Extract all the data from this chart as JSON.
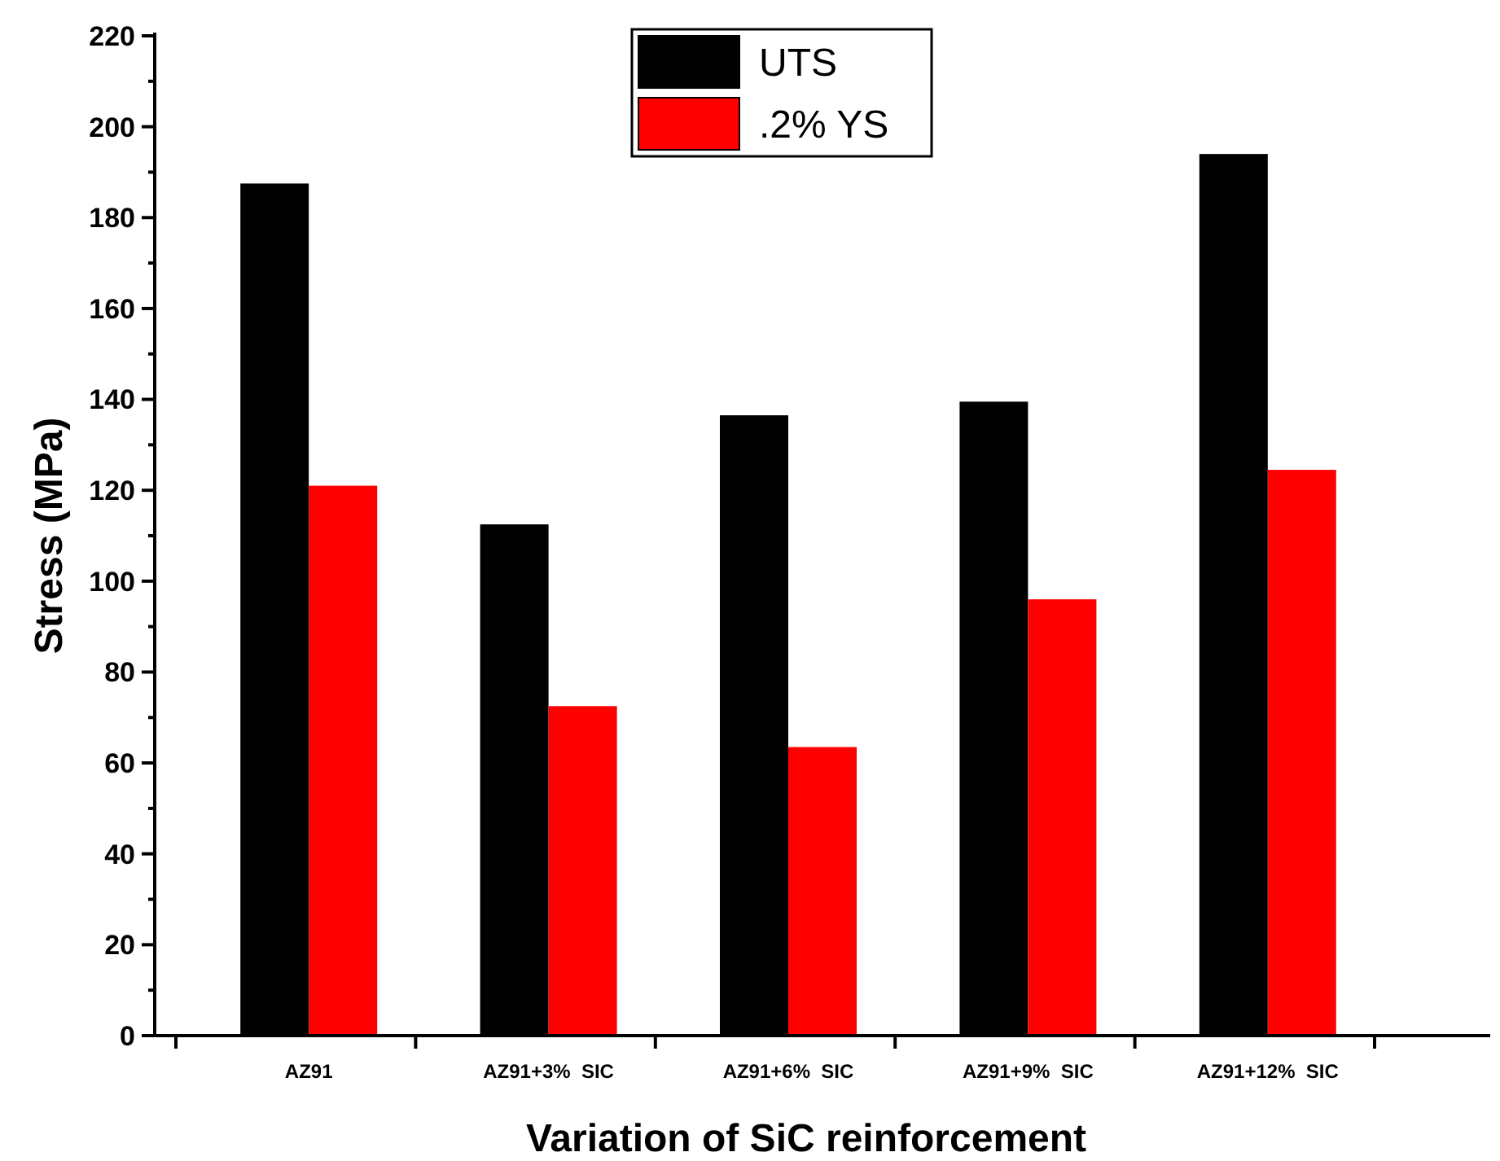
{
  "chart_data": {
    "type": "bar",
    "xlabel": "Variation of SiC reinforcement",
    "ylabel": "Stress (MPa)",
    "categories": [
      "AZ91",
      "AZ91+3%  SIC",
      "AZ91+6%  SIC",
      "AZ91+9%  SIC",
      "AZ91+12%  SIC"
    ],
    "series": [
      {
        "name": "UTS",
        "color": "#000000",
        "values": [
          187.5,
          112.5,
          136.5,
          139.5,
          194
        ]
      },
      {
        "name": ".2% YS",
        "color": "#ff0000",
        "values": [
          121,
          72.5,
          63.5,
          96,
          124.5
        ]
      }
    ],
    "ylim": [
      0,
      220
    ],
    "yticks": [
      0,
      20,
      40,
      60,
      80,
      100,
      120,
      140,
      160,
      180,
      200,
      220
    ],
    "legend": "top",
    "grid": false
  }
}
